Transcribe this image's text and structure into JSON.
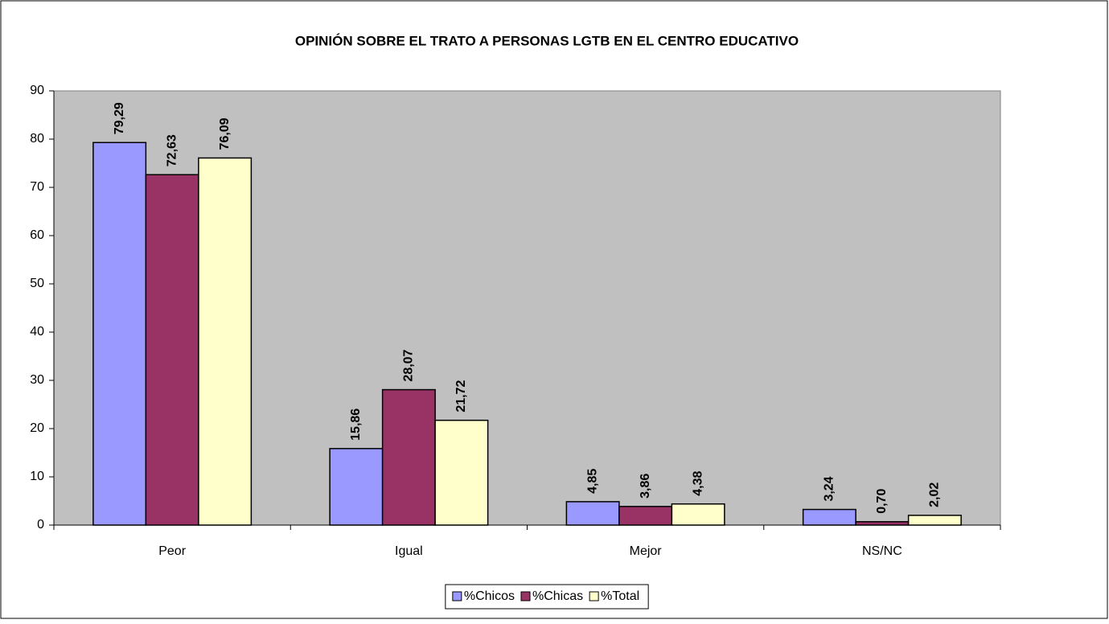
{
  "chart_data": {
    "type": "bar",
    "title": "OPINIÓN SOBRE EL TRATO A PERSONAS LGTB EN EL CENTRO EDUCATIVO",
    "categories": [
      "Peor",
      "Igual",
      "Mejor",
      "NS/NC"
    ],
    "series": [
      {
        "name": "%Chicos",
        "color": "#9999ff",
        "values": [
          79.29,
          15.86,
          4.85,
          3.24
        ],
        "value_labels": [
          "79,29",
          "15,86",
          "4,85",
          "3,24"
        ]
      },
      {
        "name": "%Chicas",
        "color": "#993366",
        "values": [
          72.63,
          28.07,
          3.86,
          0.7
        ],
        "value_labels": [
          "72,63",
          "28,07",
          "3,86",
          "0,70"
        ]
      },
      {
        "name": "%Total",
        "color": "#ffffcc",
        "values": [
          76.09,
          21.72,
          4.38,
          2.02
        ],
        "value_labels": [
          "76,09",
          "21,72",
          "4,38",
          "2,02"
        ]
      }
    ],
    "ylim": [
      0,
      90
    ],
    "yticks": [
      0,
      10,
      20,
      30,
      40,
      50,
      60,
      70,
      80,
      90
    ],
    "legend": "bottom"
  }
}
